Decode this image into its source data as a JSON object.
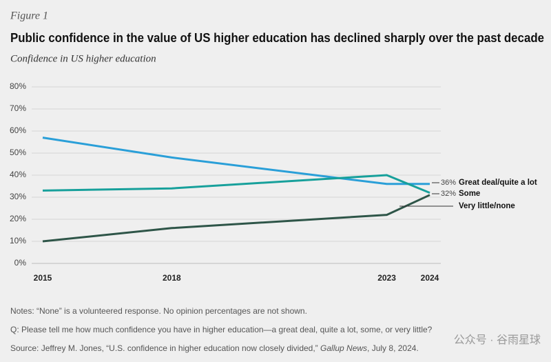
{
  "figure_label": "Figure 1",
  "chart_data": {
    "type": "line",
    "title": "Public confidence in the value of US higher education has declined sharply over the past decade",
    "subtitle": "Confidence in US higher education",
    "x": [
      2015,
      2018,
      2023,
      2024
    ],
    "xlim": [
      2015,
      2024
    ],
    "xticks": [
      2015,
      2018,
      2023,
      2024
    ],
    "ylim": [
      0,
      80
    ],
    "yticks": [
      {
        "value": 0,
        "label": "0%"
      },
      {
        "value": 10,
        "label": "10%"
      },
      {
        "value": 20,
        "label": "20%"
      },
      {
        "value": 30,
        "label": "30%"
      },
      {
        "value": 40,
        "label": "40%"
      },
      {
        "value": 50,
        "label": "50%"
      },
      {
        "value": 60,
        "label": "60%"
      },
      {
        "value": 70,
        "label": "70%"
      },
      {
        "value": 80,
        "label": "80%"
      }
    ],
    "grid": true,
    "series": [
      {
        "name": "Great deal/quite a lot",
        "color": "#2a9fd8",
        "values": [
          57,
          48,
          36,
          36
        ],
        "value_labels": [
          null,
          null,
          null,
          "36%"
        ]
      },
      {
        "name": "Some",
        "color": "#17a09b",
        "values": [
          33,
          34,
          40,
          32
        ],
        "value_labels": [
          null,
          null,
          null,
          "32%"
        ]
      },
      {
        "name": "Very little/none",
        "color": "#2e5548",
        "values": [
          10,
          16,
          22,
          31
        ]
      }
    ]
  },
  "notes": [
    "Notes: “None” is a volunteered response. No opinion percentages are not shown.",
    "Q: Please tell me how much confidence you have in higher education—a great deal, quite a lot, some, or very little?"
  ],
  "source": {
    "text": "Source: Jeffrey M. Jones, “U.S. confidence in higher education now closely divided,” ",
    "publication": "Gallup News",
    "date": ", July 8, 2024."
  },
  "watermark": "公众号 · 谷雨星球"
}
